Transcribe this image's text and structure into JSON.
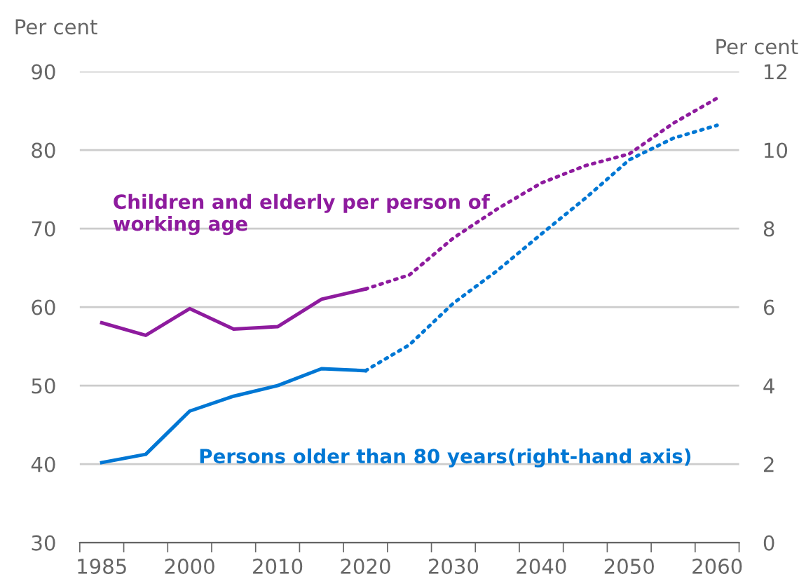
{
  "chart_data": {
    "type": "line",
    "categories": [
      "1985",
      null,
      "2000",
      null,
      "2010",
      null,
      "2020",
      null,
      "2030",
      null,
      "2040",
      null,
      "2050",
      null,
      "2060"
    ],
    "series": [
      {
        "name": "Children and elderly per person of working age",
        "color": "#8e1b9e",
        "line_style": "solid",
        "values": [
          58.0,
          56.4,
          59.8,
          57.2,
          57.5,
          61.0,
          62.3,
          null,
          null,
          null,
          null,
          null,
          null,
          null,
          null
        ]
      },
      {
        "color": "#8e1b9e",
        "line_style": "dotted",
        "values": [
          null,
          null,
          null,
          null,
          null,
          null,
          62.3,
          64.1,
          68.8,
          72.5,
          75.8,
          78.0,
          79.5,
          83.4,
          86.6
        ]
      },
      {
        "name": "Persons older than 80 years(right-hand axis)",
        "color": "#0077d4",
        "line_style": "solid",
        "axis": "y2",
        "values": [
          2.04,
          2.25,
          3.35,
          3.73,
          4.0,
          4.43,
          4.38,
          null,
          null,
          null,
          null,
          null,
          null,
          null,
          null
        ]
      },
      {
        "color": "#0077d4",
        "line_style": "dotted",
        "axis": "y2",
        "values": [
          null,
          null,
          null,
          null,
          null,
          null,
          4.38,
          5.04,
          6.1,
          6.93,
          7.86,
          8.77,
          9.75,
          10.3,
          10.63
        ]
      }
    ],
    "ylabel": "Per cent",
    "y2label": "Per cent",
    "ylim": [
      30,
      90
    ],
    "yticks": [
      30,
      40,
      50,
      60,
      70,
      80,
      90
    ],
    "y2lim": [
      0,
      12
    ],
    "y2ticks": [
      0,
      2,
      4,
      6,
      8,
      10,
      12
    ],
    "grid": "y",
    "legend": false,
    "marker": "none"
  }
}
